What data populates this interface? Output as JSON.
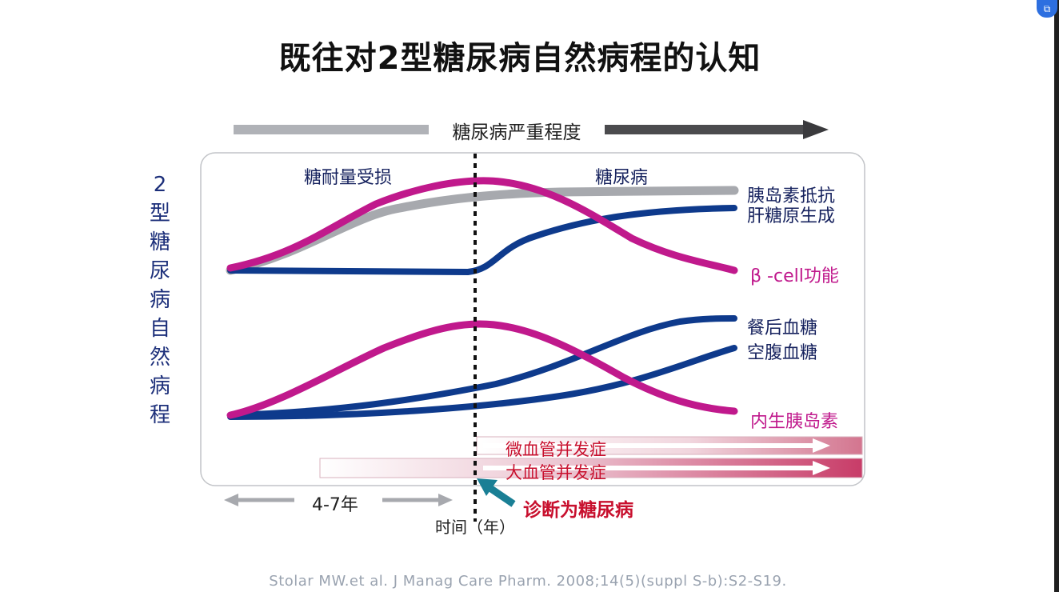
{
  "title": "既往对2型糖尿病自然病程的认知",
  "severity_label": "糖尿病严重程度",
  "y_axis_label": "2型糖尿病自然病程",
  "phases": {
    "left": "糖耐量受损",
    "right": "糖尿病"
  },
  "curves": {
    "insulin_resistance": "胰岛素抵抗",
    "hepatic_glucose": "肝糖原生成",
    "beta_cell": "β -cell功能",
    "postprandial_glucose": "餐后血糖",
    "fasting_glucose": "空腹血糖",
    "endogenous_insulin": "内生胰岛素"
  },
  "complications": {
    "micro": "微血管并发症",
    "macro": "大血管并发症"
  },
  "duration": "4-7年",
  "x_axis_label": "时间（年）",
  "diagnosis": "诊断为糖尿病",
  "citation": "Stolar MW.et al. J Manag Care Pharm. 2008;14(5)(suppl S-b):S2-S19.",
  "colors": {
    "navy": "#0e3a8c",
    "magenta": "#c0198c",
    "gray": "#a7a9ae",
    "teal": "#1a7f95",
    "red": "#c8102e"
  }
}
